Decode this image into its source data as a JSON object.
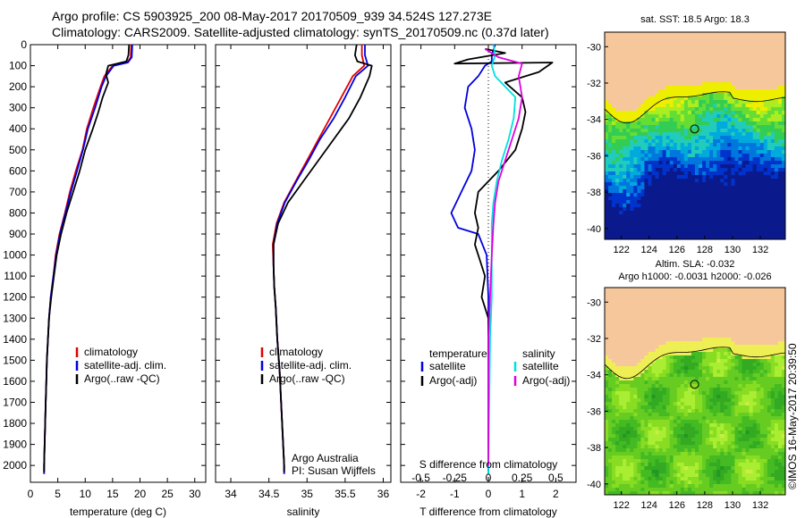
{
  "titles": {
    "line1": "Argo profile: CS 5903925_200 08-May-2017 20170509_939 34.524S 127.273E",
    "line2": "Climatology: CARS2009. Satellite-adjusted climatology: synTS_20170509.nc (0.37d later)"
  },
  "credit": "©IMOS 16-May-2017 20:39:50",
  "colors": {
    "climatology": "#e00000",
    "satellite": "#0000e0",
    "argo": "#000000",
    "sal_satellite": "#00e0e0",
    "sal_argo": "#e000e0",
    "land": "#f7c79c"
  },
  "chart_data": [
    {
      "type": "line",
      "id": "temperature",
      "xlabel": "temperature (deg C)",
      "xlim": [
        0,
        32
      ],
      "xticks": [
        0,
        5,
        10,
        15,
        20,
        25,
        30
      ],
      "ylim": [
        2080,
        0
      ],
      "yticks": [
        0,
        100,
        200,
        300,
        400,
        500,
        600,
        700,
        800,
        900,
        1000,
        1100,
        1200,
        1300,
        1400,
        1500,
        1600,
        1700,
        1800,
        1900,
        2000
      ],
      "legend": [
        "climatology",
        "satellite-adj. clim.",
        "Argo(..raw -QC)"
      ],
      "legend_position": "lower-center",
      "series": [
        {
          "name": "climatology",
          "color": "#e00000",
          "points": [
            [
              18.4,
              0
            ],
            [
              18.3,
              60
            ],
            [
              17.8,
              80
            ],
            [
              15,
              100
            ],
            [
              13.5,
              150
            ],
            [
              12.8,
              200
            ],
            [
              11.5,
              300
            ],
            [
              10.3,
              400
            ],
            [
              9.5,
              500
            ],
            [
              8.3,
              600
            ],
            [
              7.2,
              700
            ],
            [
              6.3,
              800
            ],
            [
              5.3,
              900
            ],
            [
              4.6,
              1000
            ],
            [
              4.2,
              1100
            ],
            [
              3.7,
              1200
            ],
            [
              3.4,
              1300
            ],
            [
              3.2,
              1400
            ],
            [
              3,
              1500
            ],
            [
              2.9,
              1600
            ],
            [
              2.8,
              1700
            ],
            [
              2.7,
              1800
            ],
            [
              2.6,
              1900
            ],
            [
              2.5,
              2000
            ],
            [
              2.5,
              2040
            ]
          ]
        },
        {
          "name": "satellite-adj. clim.",
          "color": "#0000e0",
          "points": [
            [
              18.6,
              0
            ],
            [
              18.5,
              60
            ],
            [
              17.8,
              85
            ],
            [
              15.2,
              100
            ],
            [
              13.8,
              150
            ],
            [
              13,
              200
            ],
            [
              11.8,
              300
            ],
            [
              10.5,
              400
            ],
            [
              9.6,
              500
            ],
            [
              8.5,
              600
            ],
            [
              7.4,
              700
            ],
            [
              6.4,
              800
            ],
            [
              5.4,
              900
            ],
            [
              4.7,
              1000
            ],
            [
              4.2,
              1100
            ],
            [
              3.7,
              1200
            ],
            [
              3.4,
              1300
            ],
            [
              3.2,
              1400
            ],
            [
              3,
              1500
            ],
            [
              2.9,
              1600
            ],
            [
              2.8,
              1700
            ],
            [
              2.7,
              1800
            ],
            [
              2.6,
              1900
            ],
            [
              2.5,
              2000
            ],
            [
              2.5,
              2040
            ]
          ]
        },
        {
          "name": "Argo(..raw -QC)",
          "color": "#000000",
          "points": [
            [
              18,
              0
            ],
            [
              17.9,
              50
            ],
            [
              17.5,
              80
            ],
            [
              14.2,
              100
            ],
            [
              13.8,
              140
            ],
            [
              14.2,
              180
            ],
            [
              13.2,
              250
            ],
            [
              12.4,
              320
            ],
            [
              11.4,
              400
            ],
            [
              10,
              500
            ],
            [
              9,
              600
            ],
            [
              7.8,
              700
            ],
            [
              6.6,
              800
            ],
            [
              5.6,
              900
            ],
            [
              4.8,
              1000
            ],
            [
              4.3,
              1100
            ],
            [
              3.8,
              1200
            ],
            [
              3.4,
              1300
            ],
            [
              3.2,
              1400
            ],
            [
              3,
              1500
            ],
            [
              2.9,
              1600
            ],
            [
              2.8,
              1700
            ],
            [
              2.7,
              1800
            ],
            [
              2.6,
              1900
            ],
            [
              2.5,
              2000
            ],
            [
              2.5,
              2030
            ]
          ]
        }
      ]
    },
    {
      "type": "line",
      "id": "salinity",
      "xlabel": "salinity",
      "xlim": [
        33.8,
        36.1
      ],
      "xticks": [
        34,
        34.5,
        35,
        35.5,
        36
      ],
      "ylim": [
        2080,
        0
      ],
      "legend": [
        "climatology",
        "satellite-adj. clim.",
        "Argo(..raw -QC)"
      ],
      "legend_position": "lower-center",
      "annotation": [
        "Argo Australia",
        "PI: Susan Wijffels"
      ],
      "series": [
        {
          "name": "climatology",
          "color": "#e00000",
          "points": [
            [
              35.72,
              0
            ],
            [
              35.72,
              50
            ],
            [
              35.75,
              100
            ],
            [
              35.6,
              150
            ],
            [
              35.45,
              250
            ],
            [
              35.3,
              350
            ],
            [
              35.15,
              450
            ],
            [
              35,
              550
            ],
            [
              34.85,
              650
            ],
            [
              34.7,
              750
            ],
            [
              34.6,
              850
            ],
            [
              34.55,
              950
            ],
            [
              34.56,
              1050
            ],
            [
              34.57,
              1150
            ],
            [
              34.59,
              1250
            ],
            [
              34.61,
              1400
            ],
            [
              34.64,
              1550
            ],
            [
              34.66,
              1700
            ],
            [
              34.68,
              1850
            ],
            [
              34.7,
              2000
            ],
            [
              34.7,
              2040
            ]
          ]
        },
        {
          "name": "satellite-adj. clim.",
          "color": "#0000e0",
          "points": [
            [
              35.76,
              0
            ],
            [
              35.76,
              50
            ],
            [
              35.8,
              100
            ],
            [
              35.64,
              150
            ],
            [
              35.5,
              250
            ],
            [
              35.35,
              350
            ],
            [
              35.17,
              450
            ],
            [
              35.02,
              550
            ],
            [
              34.86,
              650
            ],
            [
              34.71,
              750
            ],
            [
              34.61,
              850
            ],
            [
              34.56,
              950
            ],
            [
              34.56,
              1050
            ],
            [
              34.57,
              1150
            ],
            [
              34.59,
              1250
            ],
            [
              34.61,
              1400
            ],
            [
              34.64,
              1550
            ],
            [
              34.66,
              1700
            ],
            [
              34.68,
              1850
            ],
            [
              34.7,
              2000
            ],
            [
              34.7,
              2040
            ]
          ]
        },
        {
          "name": "Argo(..raw -QC)",
          "color": "#000000",
          "points": [
            [
              35.65,
              0
            ],
            [
              35.63,
              50
            ],
            [
              35.66,
              80
            ],
            [
              35.85,
              100
            ],
            [
              35.82,
              150
            ],
            [
              35.7,
              250
            ],
            [
              35.55,
              350
            ],
            [
              35.35,
              450
            ],
            [
              35.15,
              550
            ],
            [
              34.95,
              650
            ],
            [
              34.75,
              750
            ],
            [
              34.62,
              850
            ],
            [
              34.56,
              950
            ],
            [
              34.56,
              1050
            ],
            [
              34.57,
              1150
            ],
            [
              34.59,
              1250
            ],
            [
              34.61,
              1400
            ],
            [
              34.64,
              1550
            ],
            [
              34.66,
              1700
            ],
            [
              34.68,
              1850
            ],
            [
              34.7,
              2000
            ],
            [
              34.7,
              2030
            ]
          ]
        }
      ]
    },
    {
      "type": "line",
      "id": "difference",
      "xlabel": "T difference from climatology",
      "xlabel_top": "S difference from climatology",
      "xlim": [
        -2.6,
        2.6
      ],
      "xticks": [
        -2,
        -1,
        0,
        1,
        2
      ],
      "xticks_top": [
        -0.5,
        -0.25,
        0,
        0.25,
        0.5
      ],
      "ylim": [
        2080,
        0
      ],
      "legend_titles": [
        "temperature",
        "salinity"
      ],
      "legend": [
        "satellite",
        "Argo(-adj)",
        "satellite",
        "Argo(-adj)"
      ],
      "legend_position": "lower-center",
      "series": [
        {
          "name": "temperature satellite",
          "color": "#0000e0",
          "points": [
            [
              0.2,
              0
            ],
            [
              0.1,
              50
            ],
            [
              0.1,
              80
            ],
            [
              -0.1,
              100
            ],
            [
              -0.3,
              150
            ],
            [
              -0.6,
              200
            ],
            [
              -0.7,
              300
            ],
            [
              -0.5,
              400
            ],
            [
              -0.4,
              500
            ],
            [
              -0.5,
              600
            ],
            [
              -0.8,
              700
            ],
            [
              -1.1,
              800
            ],
            [
              -0.9,
              870
            ],
            [
              -0.3,
              900
            ],
            [
              -0.05,
              1000
            ],
            [
              0,
              1200
            ],
            [
              0,
              1500
            ],
            [
              0,
              2000
            ],
            [
              0,
              2040
            ]
          ]
        },
        {
          "name": "temperature Argo(-adj)",
          "color": "#000000",
          "points": [
            [
              -0.1,
              20
            ],
            [
              0.5,
              40
            ],
            [
              -0.6,
              70
            ],
            [
              -1,
              90
            ],
            [
              1.9,
              85
            ],
            [
              1.5,
              130
            ],
            [
              0.5,
              180
            ],
            [
              1.0,
              250
            ],
            [
              1.1,
              320
            ],
            [
              1.0,
              400
            ],
            [
              0.8,
              500
            ],
            [
              0.3,
              600
            ],
            [
              -0.3,
              700
            ],
            [
              -0.4,
              800
            ],
            [
              -0.3,
              870
            ],
            [
              -0.4,
              950
            ],
            [
              -0.2,
              1050
            ],
            [
              -0.1,
              1100
            ],
            [
              -0.2,
              1200
            ],
            [
              0,
              1300
            ],
            [
              0,
              1500
            ],
            [
              0,
              2000
            ],
            [
              0,
              2030
            ]
          ]
        },
        {
          "name": "salinity satellite",
          "color": "#00e0e0",
          "points": [
            [
              0.15,
              0
            ],
            [
              0.2,
              50
            ],
            [
              0.1,
              100
            ],
            [
              0.2,
              150
            ],
            [
              0.8,
              250
            ],
            [
              0.75,
              350
            ],
            [
              0.6,
              450
            ],
            [
              0.4,
              550
            ],
            [
              0.25,
              650
            ],
            [
              0.15,
              750
            ],
            [
              0.1,
              850
            ],
            [
              0.1,
              1000
            ],
            [
              0.1,
              1200
            ],
            [
              0.05,
              1400
            ],
            [
              0,
              2000
            ],
            [
              0,
              2040
            ]
          ]
        },
        {
          "name": "salinity Argo(-adj)",
          "color": "#e000e0",
          "points": [
            [
              -0.1,
              20
            ],
            [
              0.3,
              60
            ],
            [
              1.0,
              90
            ],
            [
              0.9,
              150
            ],
            [
              1.0,
              250
            ],
            [
              0.9,
              350
            ],
            [
              0.7,
              450
            ],
            [
              0.5,
              550
            ],
            [
              0.3,
              650
            ],
            [
              0.2,
              750
            ],
            [
              0.15,
              850
            ],
            [
              0.1,
              1000
            ],
            [
              0.05,
              1200
            ],
            [
              0,
              1400
            ],
            [
              0,
              2000
            ]
          ]
        }
      ]
    }
  ],
  "maps": {
    "top": {
      "title": "sat. SST: 18.5 Argo: 18.3",
      "yticks": [
        -30,
        -32,
        -34,
        -36,
        -38,
        -40
      ],
      "xticks": [
        122,
        124,
        126,
        128,
        130,
        132
      ],
      "xlim": [
        120.8,
        133.8
      ],
      "ylim": [
        -40.6,
        -29.2
      ],
      "float": [
        127.273,
        -34.524
      ]
    },
    "bottom": {
      "title1": "Altim. SLA: -0.032",
      "title2": "Argo h1000: -0.0031 h2000: -0.026",
      "yticks": [
        -30,
        -32,
        -34,
        -36,
        -38,
        -40
      ],
      "xticks": [
        122,
        124,
        126,
        128,
        130,
        132
      ],
      "xlim": [
        120.8,
        133.8
      ],
      "ylim": [
        -40.6,
        -29.2
      ],
      "float": [
        127.273,
        -34.524
      ]
    }
  }
}
